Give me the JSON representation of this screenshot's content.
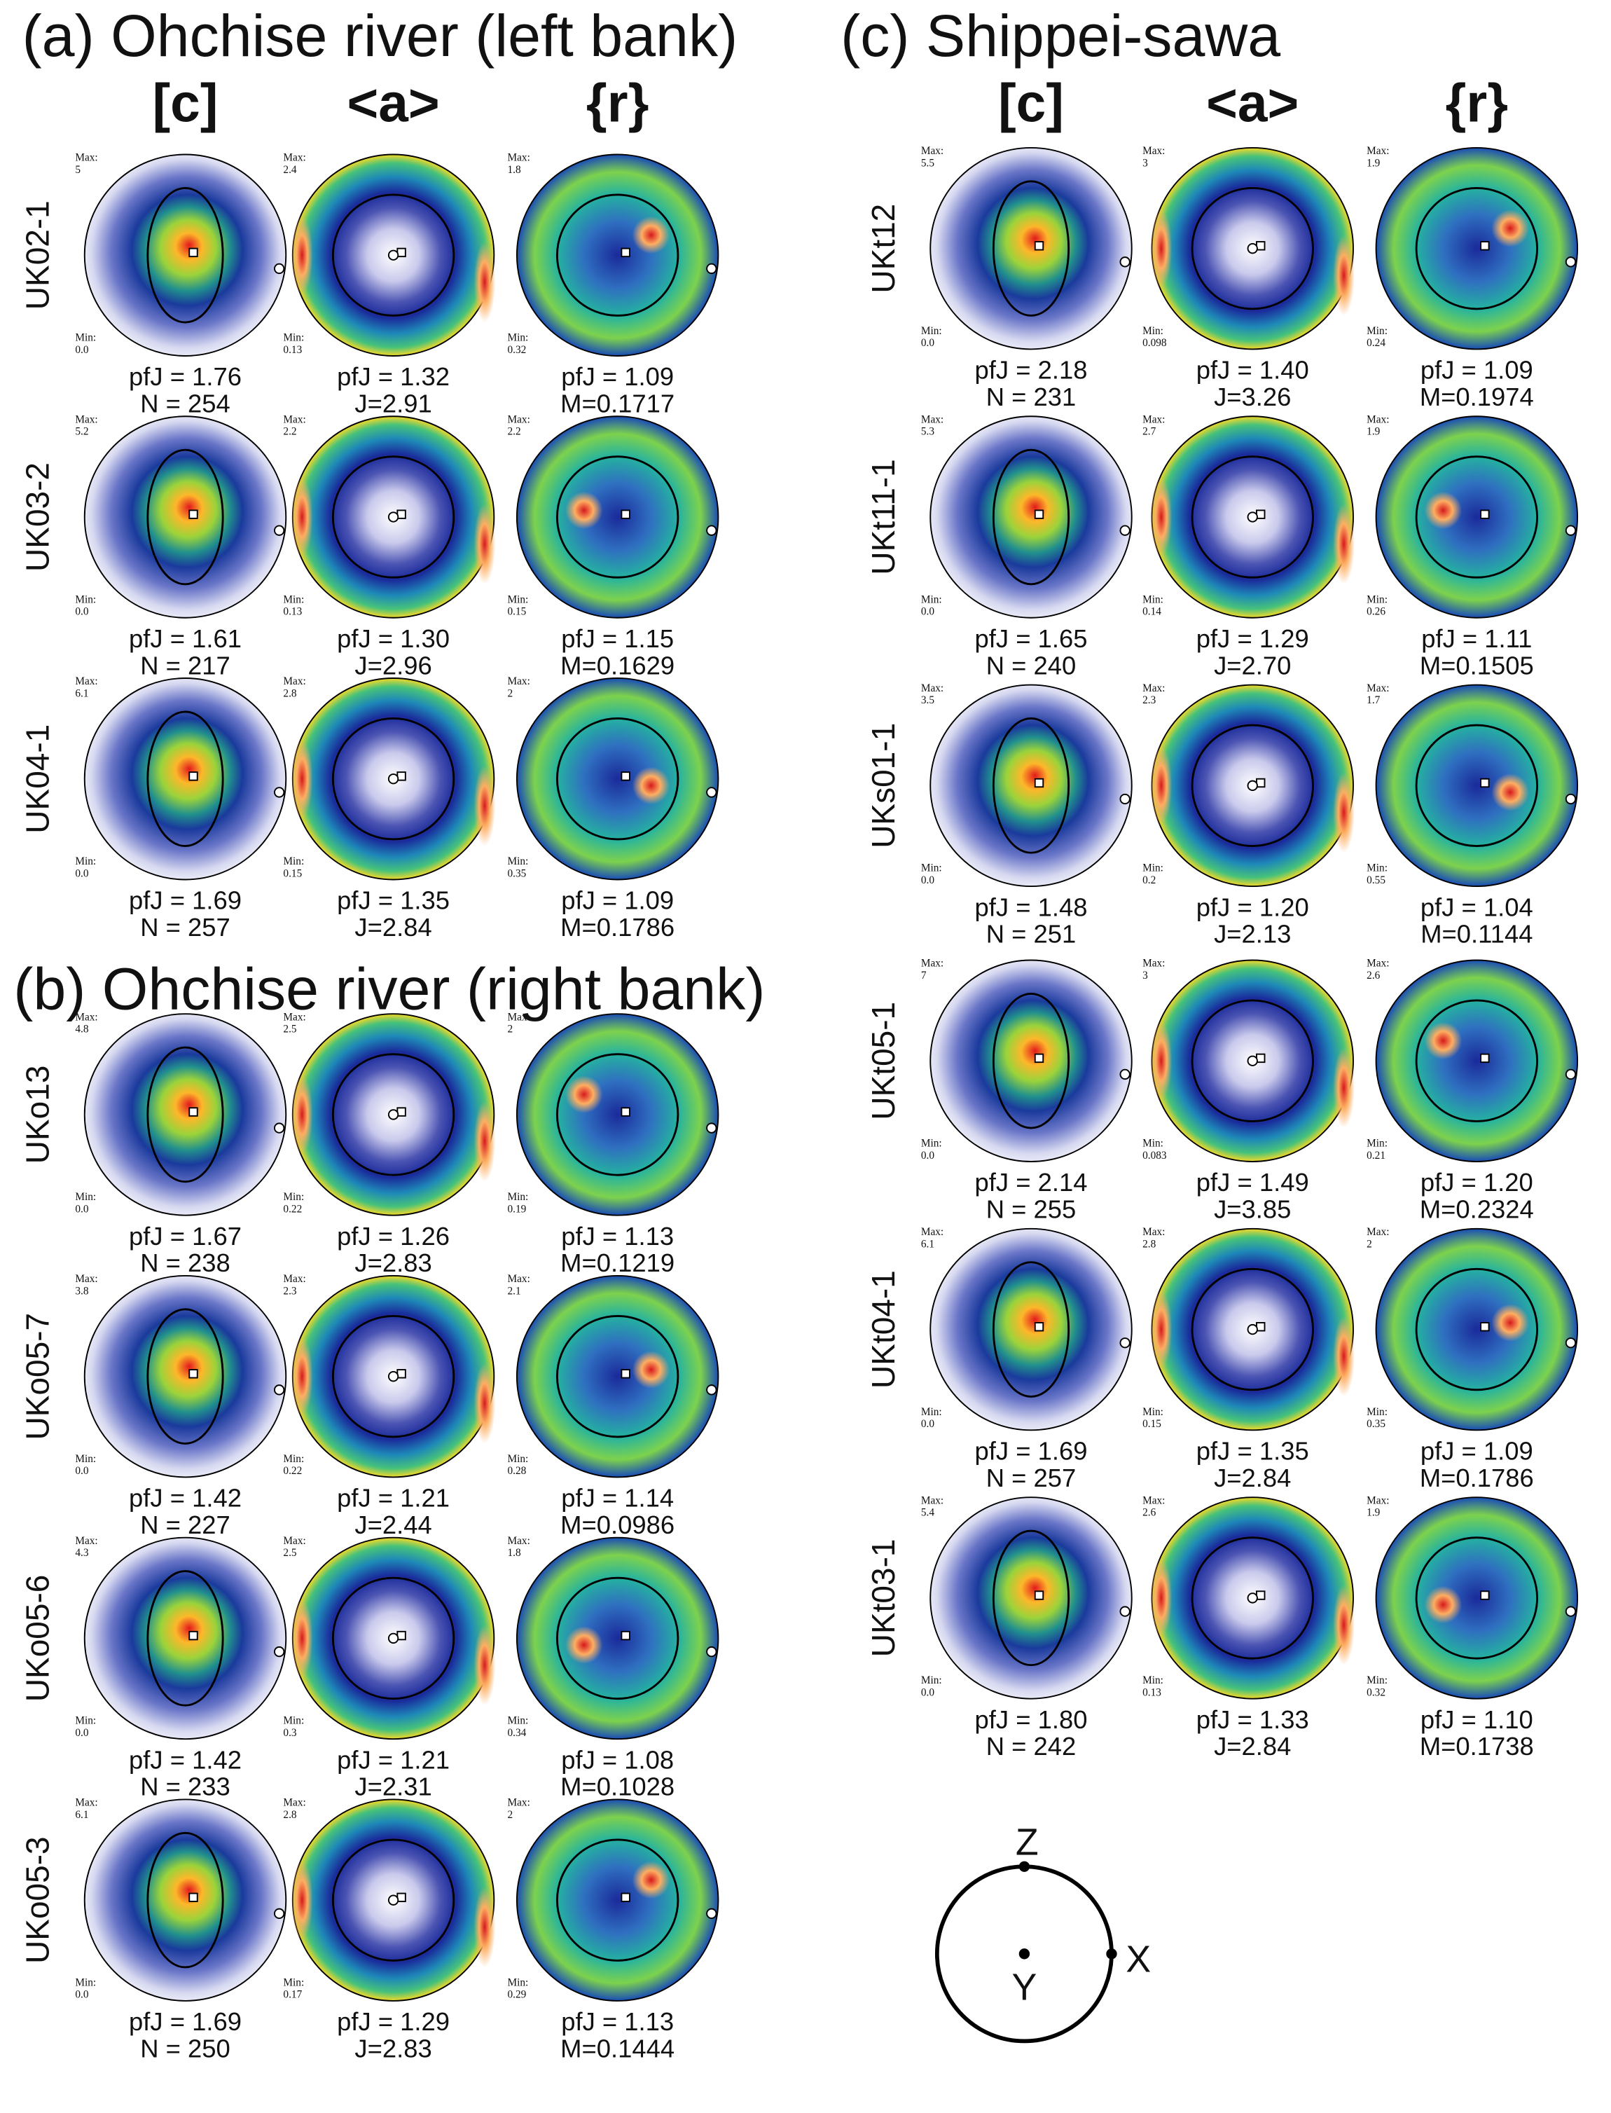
{
  "labels": {
    "max": "Max:",
    "min": "Min:"
  },
  "sections": [
    {
      "title": "(a) Ohchise river (left bank)",
      "headers": [
        "[c]",
        "<a>",
        "{r}"
      ],
      "samples": [
        {
          "label": "UK02-1",
          "figures": [
            {
              "max": "5",
              "min": "0.0",
              "stats": [
                "pfJ = 1.76",
                "N = 254"
              ]
            },
            {
              "max": "2.4",
              "min": "0.13",
              "stats": [
                "pfJ = 1.32",
                "J=2.91"
              ]
            },
            {
              "max": "1.8",
              "min": "0.32",
              "stats": [
                "pfJ = 1.09",
                "M=0.1717"
              ]
            }
          ]
        },
        {
          "label": "UK03-2",
          "figures": [
            {
              "max": "5.2",
              "min": "0.0",
              "stats": [
                "pfJ = 1.61",
                "N = 217"
              ]
            },
            {
              "max": "2.2",
              "min": "0.13",
              "stats": [
                "pfJ = 1.30",
                "J=2.96"
              ]
            },
            {
              "max": "2.2",
              "min": "0.15",
              "stats": [
                "pfJ = 1.15",
                "M=0.1629"
              ]
            }
          ]
        },
        {
          "label": "UK04-1",
          "figures": [
            {
              "max": "6.1",
              "min": "0.0",
              "stats": [
                "pfJ = 1.69",
                "N = 257"
              ]
            },
            {
              "max": "2.8",
              "min": "0.15",
              "stats": [
                "pfJ = 1.35",
                "J=2.84"
              ]
            },
            {
              "max": "2",
              "min": "0.35",
              "stats": [
                "pfJ = 1.09",
                "M=0.1786"
              ]
            }
          ]
        }
      ]
    },
    {
      "title": "(b) Ohchise river (right bank)",
      "samples": [
        {
          "label": "UKo13",
          "figures": [
            {
              "max": "4.8",
              "min": "0.0",
              "stats": [
                "pfJ = 1.67",
                "N = 238"
              ]
            },
            {
              "max": "2.5",
              "min": "0.22",
              "stats": [
                "pfJ = 1.26",
                "J=2.83"
              ]
            },
            {
              "max": "2",
              "min": "0.19",
              "stats": [
                "pfJ = 1.13",
                "M=0.1219"
              ]
            }
          ]
        },
        {
          "label": "UKo05-7",
          "figures": [
            {
              "max": "3.8",
              "min": "0.0",
              "stats": [
                "pfJ = 1.42",
                "N = 227"
              ]
            },
            {
              "max": "2.3",
              "min": "0.22",
              "stats": [
                "pfJ = 1.21",
                "J=2.44"
              ]
            },
            {
              "max": "2.1",
              "min": "0.28",
              "stats": [
                "pfJ = 1.14",
                "M=0.0986"
              ]
            }
          ]
        },
        {
          "label": "UKo05-6",
          "figures": [
            {
              "max": "4.3",
              "min": "0.0",
              "stats": [
                "pfJ = 1.42",
                "N = 233"
              ]
            },
            {
              "max": "2.5",
              "min": "0.3",
              "stats": [
                "pfJ = 1.21",
                "J=2.31"
              ]
            },
            {
              "max": "1.8",
              "min": "0.34",
              "stats": [
                "pfJ = 1.08",
                "M=0.1028"
              ]
            }
          ]
        },
        {
          "label": "UKo05-3",
          "figures": [
            {
              "max": "6.1",
              "min": "0.0",
              "stats": [
                "pfJ = 1.69",
                "N = 250"
              ]
            },
            {
              "max": "2.8",
              "min": "0.17",
              "stats": [
                "pfJ = 1.29",
                "J=2.83"
              ]
            },
            {
              "max": "2",
              "min": "0.29",
              "stats": [
                "pfJ = 1.13",
                "M=0.1444"
              ]
            }
          ]
        }
      ]
    },
    {
      "title": "(c) Shippei-sawa",
      "headers": [
        "[c]",
        "<a>",
        "{r}"
      ],
      "samples": [
        {
          "label": "UKt12",
          "figures": [
            {
              "max": "5.5",
              "min": "0.0",
              "stats": [
                "pfJ = 2.18",
                "N = 231"
              ]
            },
            {
              "max": "3",
              "min": "0.098",
              "stats": [
                "pfJ = 1.40",
                "J=3.26"
              ]
            },
            {
              "max": "1.9",
              "min": "0.24",
              "stats": [
                "pfJ = 1.09",
                "M=0.1974"
              ]
            }
          ]
        },
        {
          "label": "UKt11-1",
          "figures": [
            {
              "max": "5.3",
              "min": "0.0",
              "stats": [
                "pfJ = 1.65",
                "N = 240"
              ]
            },
            {
              "max": "2.7",
              "min": "0.14",
              "stats": [
                "pfJ = 1.29",
                "J=2.70"
              ]
            },
            {
              "max": "1.9",
              "min": "0.26",
              "stats": [
                "pfJ = 1.11",
                "M=0.1505"
              ]
            }
          ]
        },
        {
          "label": "UKs01-1",
          "figures": [
            {
              "max": "3.5",
              "min": "0.0",
              "stats": [
                "pfJ = 1.48",
                "N = 251"
              ]
            },
            {
              "max": "2.3",
              "min": "0.2",
              "stats": [
                "pfJ = 1.20",
                "J=2.13"
              ]
            },
            {
              "max": "1.7",
              "min": "0.55",
              "stats": [
                "pfJ = 1.04",
                "M=0.1144"
              ]
            }
          ]
        },
        {
          "label": "UKt05-1",
          "figures": [
            {
              "max": "7",
              "min": "0.0",
              "stats": [
                "pfJ = 2.14",
                "N = 255"
              ]
            },
            {
              "max": "3",
              "min": "0.083",
              "stats": [
                "pfJ = 1.49",
                "J=3.85"
              ]
            },
            {
              "max": "2.6",
              "min": "0.21",
              "stats": [
                "pfJ = 1.20",
                "M=0.2324"
              ]
            }
          ]
        },
        {
          "label": "UKt04-1",
          "figures": [
            {
              "max": "6.1",
              "min": "0.0",
              "stats": [
                "pfJ = 1.69",
                "N = 257"
              ]
            },
            {
              "max": "2.8",
              "min": "0.15",
              "stats": [
                "pfJ = 1.35",
                "J=2.84"
              ]
            },
            {
              "max": "2",
              "min": "0.35",
              "stats": [
                "pfJ = 1.09",
                "M=0.1786"
              ]
            }
          ]
        },
        {
          "label": "UKt03-1",
          "figures": [
            {
              "max": "5.4",
              "min": "0.0",
              "stats": [
                "pfJ = 1.80",
                "N = 242"
              ]
            },
            {
              "max": "2.6",
              "min": "0.13",
              "stats": [
                "pfJ = 1.33",
                "J=2.84"
              ]
            },
            {
              "max": "1.9",
              "min": "0.32",
              "stats": [
                "pfJ = 1.10",
                "M=0.1738"
              ]
            }
          ]
        }
      ]
    }
  ],
  "orientation": {
    "z": "Z",
    "x": "X",
    "y": "Y"
  }
}
